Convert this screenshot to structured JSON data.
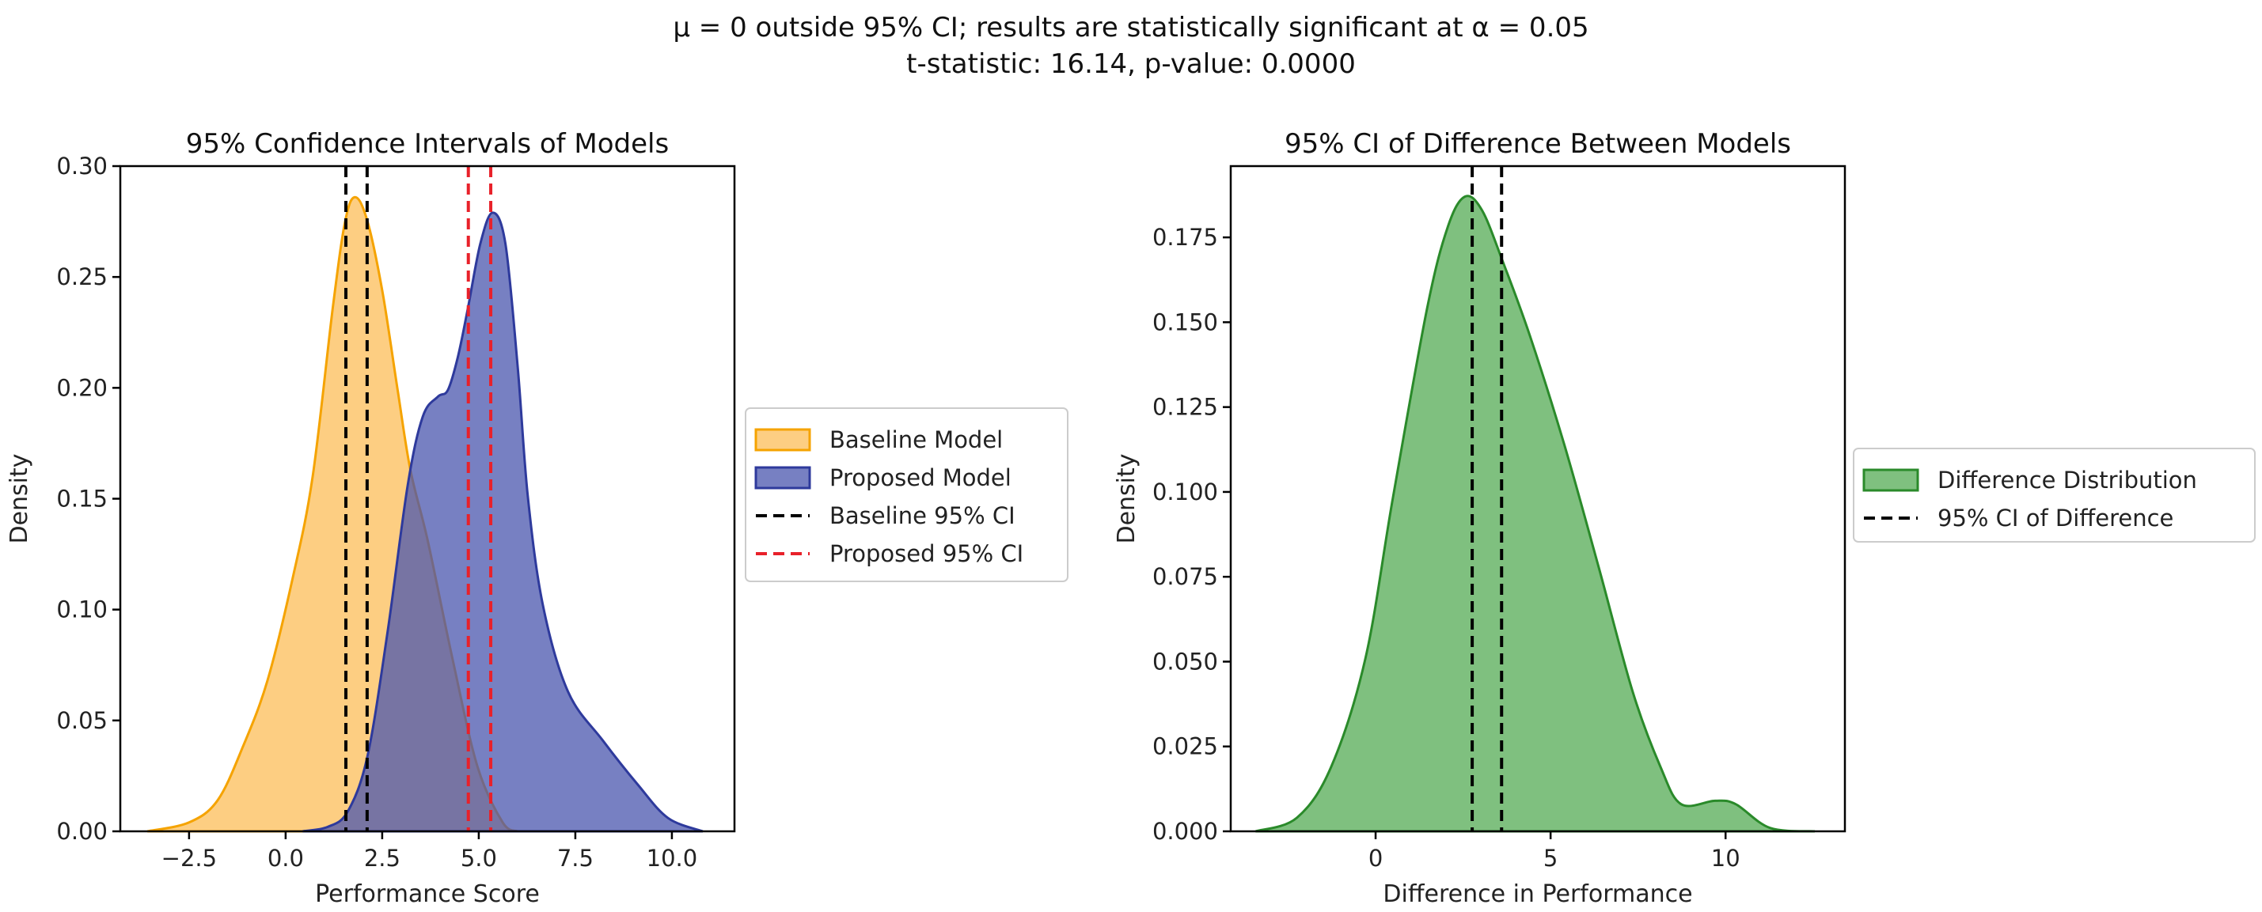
{
  "suptitle": {
    "line1": "μ = 0 outside 95% CI; results are statistically significant at α = 0.05",
    "line2": "t-statistic: 16.14, p-value: 0.0000"
  },
  "chart_data": [
    {
      "type": "area",
      "title": "95% Confidence Intervals of Models",
      "xlabel": "Performance Score",
      "ylabel": "Density",
      "xlim": [
        -4.28,
        11.62
      ],
      "ylim": [
        0,
        0.3
      ],
      "xticks": [
        "−2.5",
        "0.0",
        "2.5",
        "5.0",
        "7.5",
        "10.0"
      ],
      "xtick_values": [
        -2.5,
        0,
        2.5,
        5,
        7.5,
        10
      ],
      "yticks": [
        "0.00",
        "0.05",
        "0.10",
        "0.15",
        "0.20",
        "0.25",
        "0.30"
      ],
      "ytick_values": [
        0,
        0.05,
        0.1,
        0.15,
        0.2,
        0.25,
        0.3
      ],
      "grid": false,
      "legend_placement": "outside-right",
      "series": [
        {
          "name": "Baseline Model",
          "fill": "#FDC56C",
          "stroke": "#F5A300",
          "opacity": 0.85,
          "x": [
            -3.58,
            -2.5,
            -1.76,
            -1.11,
            -0.47,
            0.18,
            0.7,
            1.22,
            1.54,
            1.8,
            2.12,
            2.51,
            2.9,
            3.23,
            3.68,
            4.33,
            4.97,
            5.62,
            6.0
          ],
          "y": [
            0,
            0.004,
            0.014,
            0.038,
            0.068,
            0.114,
            0.16,
            0.236,
            0.275,
            0.286,
            0.275,
            0.243,
            0.199,
            0.163,
            0.131,
            0.077,
            0.029,
            0.004,
            0
          ]
        },
        {
          "name": "Proposed Model",
          "fill": "#4A56AE",
          "stroke": "#2E3A9C",
          "opacity": 0.75,
          "x": [
            0.44,
            1.09,
            1.61,
            2.12,
            2.64,
            3.16,
            3.55,
            3.94,
            4.2,
            4.46,
            4.72,
            5.04,
            5.36,
            5.69,
            6.01,
            6.27,
            6.66,
            7.31,
            8.21,
            9.12,
            9.9,
            10.8
          ],
          "y": [
            0,
            0.002,
            0.009,
            0.034,
            0.09,
            0.156,
            0.187,
            0.196,
            0.199,
            0.214,
            0.236,
            0.265,
            0.279,
            0.265,
            0.209,
            0.151,
            0.102,
            0.063,
            0.041,
            0.021,
            0.006,
            0
          ]
        }
      ],
      "vlines": [
        {
          "name": "Baseline 95% CI",
          "color": "#000000",
          "values": [
            1.56,
            2.11
          ]
        },
        {
          "name": "Proposed 95% CI",
          "color": "#E8212A",
          "values": [
            4.73,
            5.31
          ]
        }
      ]
    },
    {
      "type": "area",
      "title": "95% CI of Difference Between Models",
      "xlabel": "Difference in Performance",
      "ylabel": "Density",
      "xlim": [
        -4.14,
        13.41
      ],
      "ylim": [
        0,
        0.196
      ],
      "xticks": [
        "0",
        "5",
        "10"
      ],
      "xtick_values": [
        0,
        5,
        10
      ],
      "yticks": [
        "0.000",
        "0.025",
        "0.050",
        "0.075",
        "0.100",
        "0.125",
        "0.150",
        "0.175"
      ],
      "ytick_values": [
        0,
        0.025,
        0.05,
        0.075,
        0.1,
        0.125,
        0.15,
        0.175
      ],
      "grid": false,
      "legend_placement": "outside-right",
      "series": [
        {
          "name": "Difference Distribution",
          "fill": "#5FB05F",
          "stroke": "#2A8A2A",
          "opacity": 0.8,
          "x": [
            -3.43,
            -2.25,
            -1.27,
            -0.29,
            0.49,
            1.47,
            2.06,
            2.55,
            3.04,
            3.63,
            4.41,
            5.39,
            6.37,
            7.35,
            8.14,
            8.73,
            9.7,
            10.29,
            11.27,
            12.55
          ],
          "y": [
            0,
            0.004,
            0.019,
            0.051,
            0.098,
            0.154,
            0.178,
            0.187,
            0.183,
            0.168,
            0.146,
            0.114,
            0.078,
            0.041,
            0.019,
            0.008,
            0.009,
            0.008,
            0.001,
            0
          ]
        }
      ],
      "vlines": [
        {
          "name": "95% CI of Difference",
          "color": "#000000",
          "values": [
            2.76,
            3.6
          ]
        }
      ]
    }
  ]
}
